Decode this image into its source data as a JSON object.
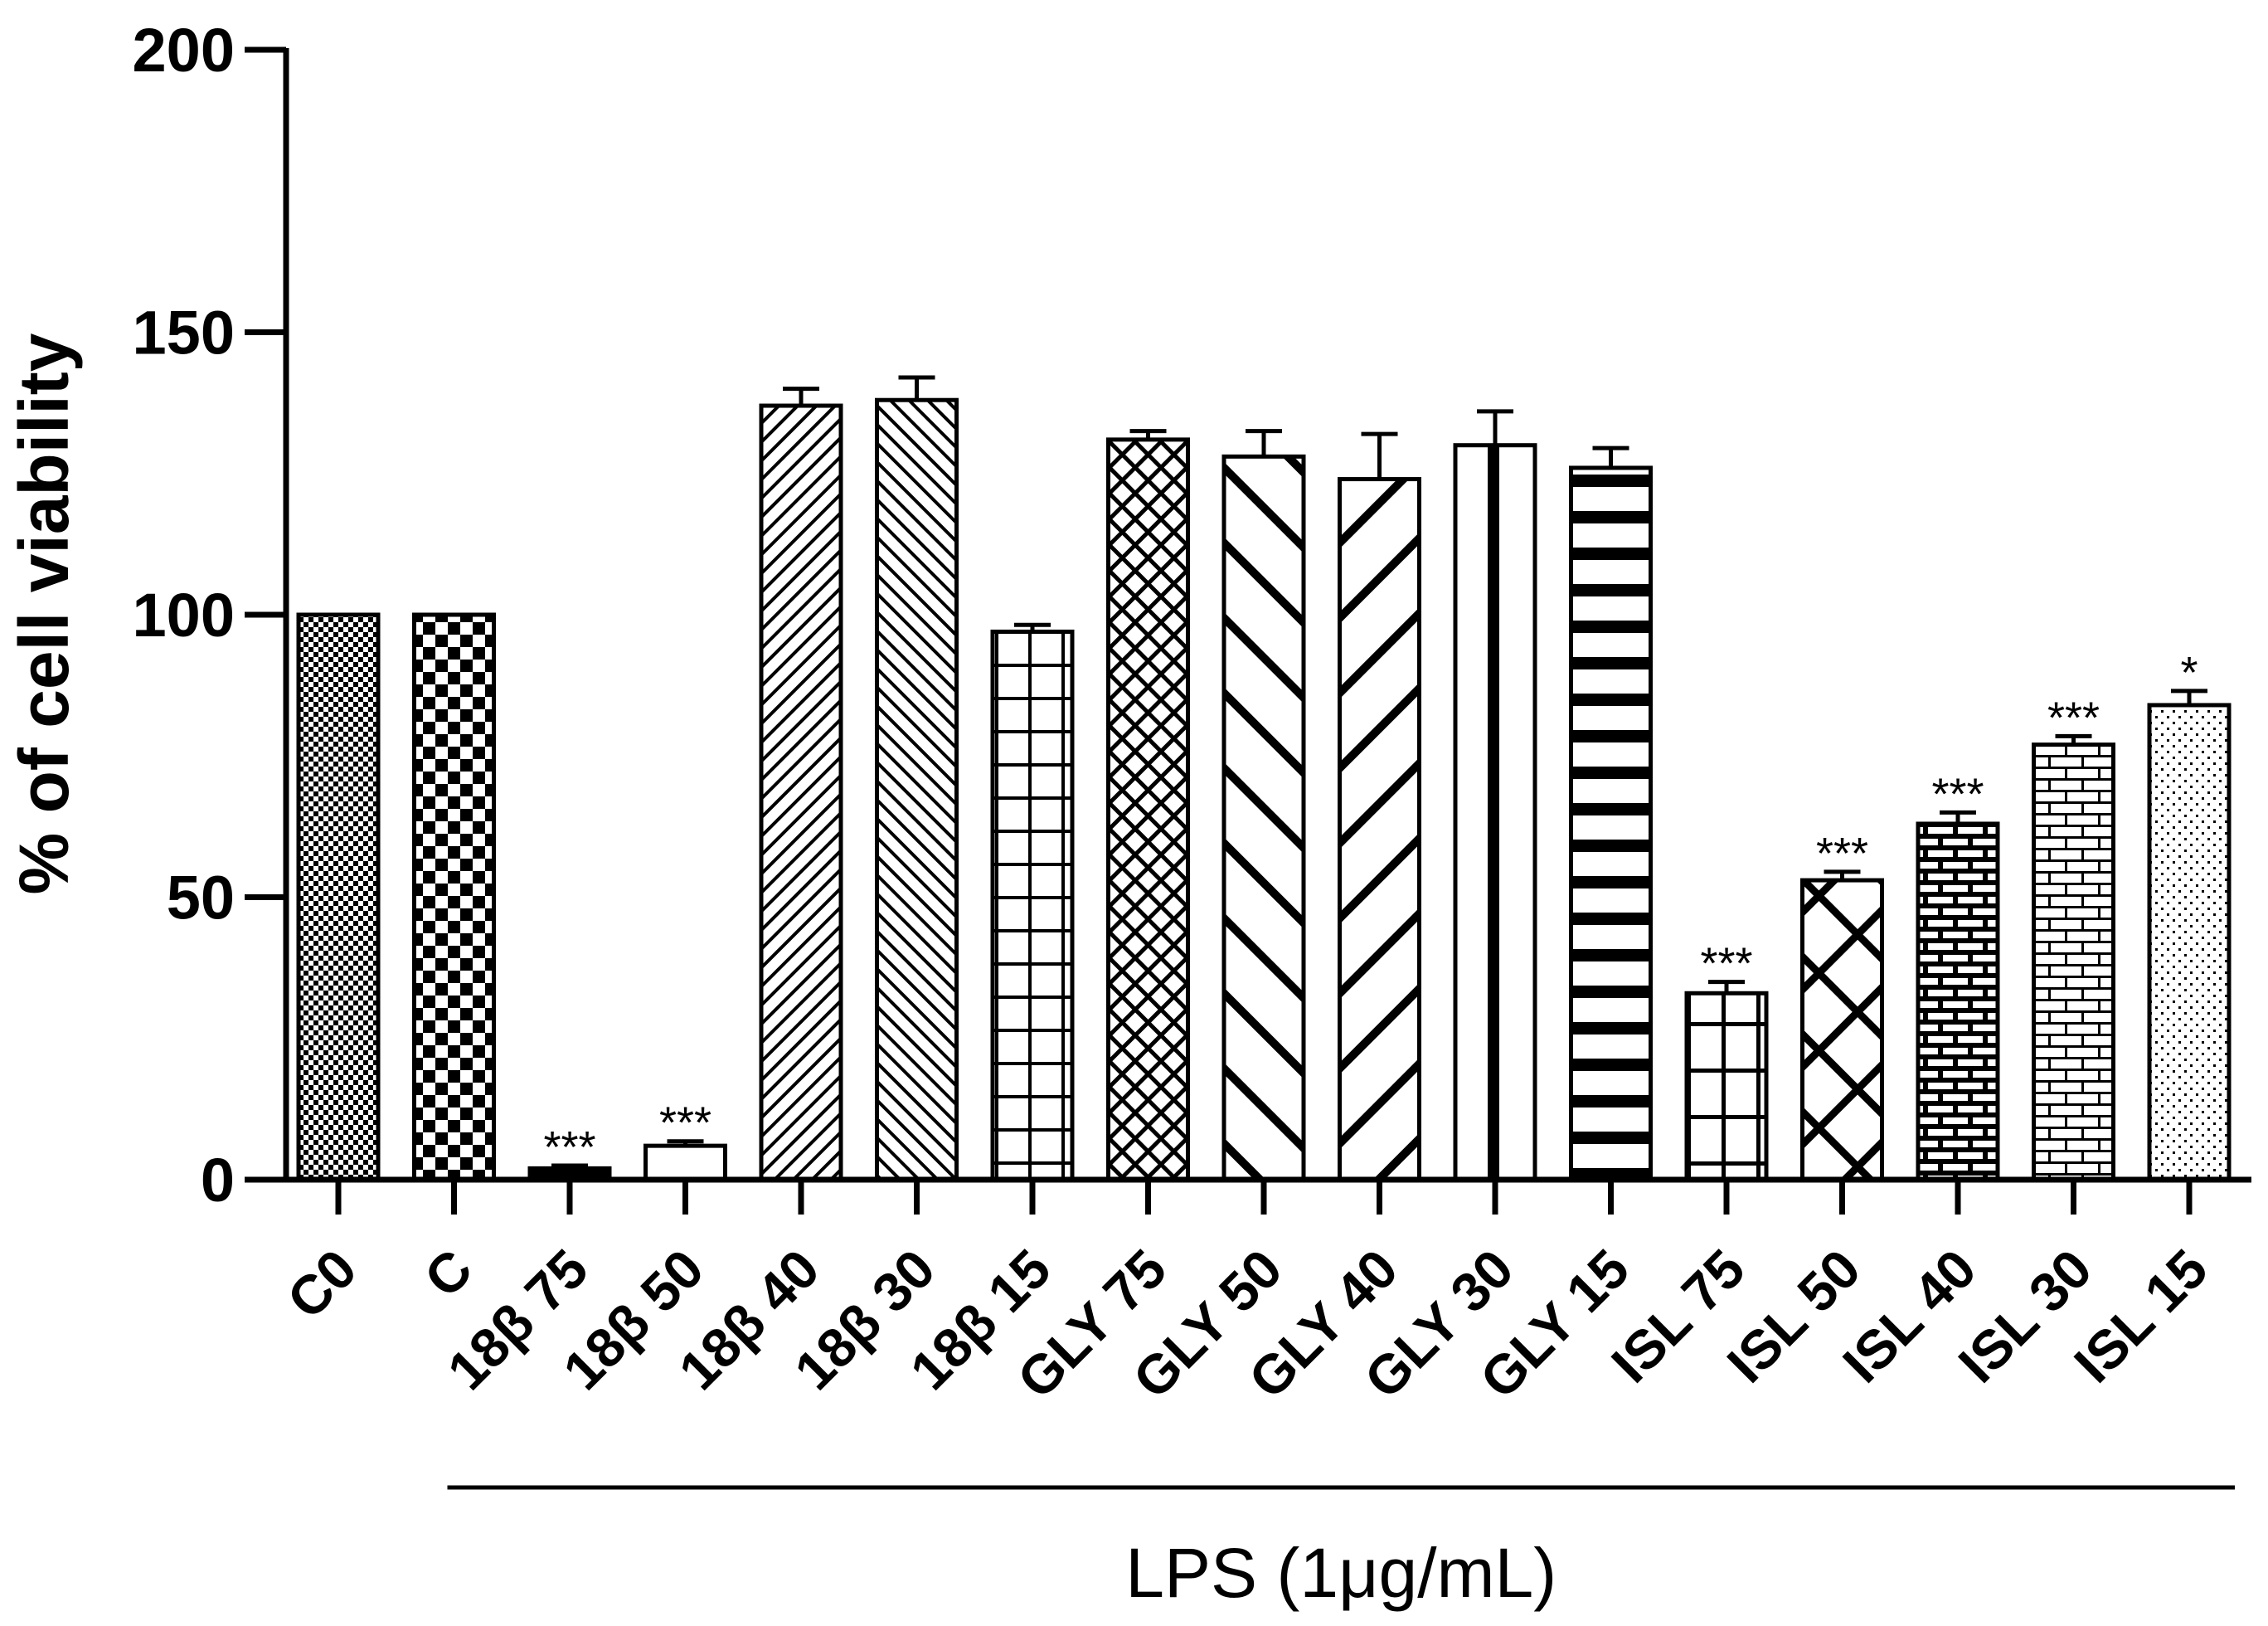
{
  "chart_data": {
    "type": "bar",
    "title": "",
    "xlabel": "",
    "ylabel": "% of cell viability",
    "ylim": [
      0,
      200
    ],
    "yticks": [
      0,
      50,
      100,
      150,
      200
    ],
    "categories": [
      "C0",
      "C",
      "18β 75",
      "18β 50",
      "18β 40",
      "18β 30",
      "18β 15",
      "GLY 75",
      "GLY 50",
      "GLY 40",
      "GLY 30",
      "GLY 15",
      "ISL 75",
      "ISL 50",
      "ISL 40",
      "ISL 30",
      "ISL 15"
    ],
    "values": [
      100,
      100,
      2,
      6,
      137,
      138,
      97,
      131,
      128,
      124,
      130,
      126,
      33,
      53,
      63,
      77,
      84
    ],
    "errors": [
      0,
      0,
      0.5,
      0.8,
      3,
      4,
      1.2,
      1.5,
      4.5,
      8,
      6,
      3.5,
      2,
      1.5,
      2,
      1.5,
      2.5
    ],
    "significance": [
      "",
      "",
      "***",
      "***",
      "",
      "",
      "",
      "",
      "",
      "",
      "",
      "",
      "***",
      "***",
      "***",
      "***",
      "*"
    ],
    "patterns": [
      "fine-check",
      "check",
      "solid",
      "open",
      "diag-right",
      "diag-left",
      "grid",
      "crosshatch-fine",
      "diag-left-bold",
      "diag-right-bold",
      "vertical-bold",
      "horizontal-bold",
      "grid-wide",
      "crosshatch-bold",
      "brick-dark",
      "brick-light",
      "dots"
    ],
    "group_bracket": {
      "label": "LPS (1μg/mL)",
      "from_category": "C",
      "to_category": "ISL 15"
    },
    "colors": {
      "ink": "#000000",
      "background": "#ffffff"
    }
  }
}
